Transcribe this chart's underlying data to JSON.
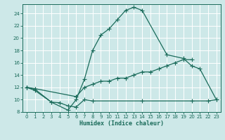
{
  "xlabel": "Humidex (Indice chaleur)",
  "bg_color": "#cde8e8",
  "grid_color": "#b0d4d4",
  "line_color": "#1a6b5a",
  "xlim": [
    -0.5,
    23.5
  ],
  "ylim": [
    8,
    25.5
  ],
  "xticks": [
    0,
    1,
    2,
    3,
    4,
    5,
    6,
    7,
    8,
    9,
    10,
    11,
    12,
    13,
    14,
    15,
    16,
    17,
    18,
    19,
    20,
    21,
    22,
    23
  ],
  "yticks": [
    8,
    10,
    12,
    14,
    16,
    18,
    20,
    22,
    24
  ],
  "line1": [
    [
      0,
      12.0
    ],
    [
      1,
      11.7
    ],
    [
      3,
      9.6
    ],
    [
      5,
      8.3
    ],
    [
      6,
      10.0
    ],
    [
      7,
      13.3
    ],
    [
      8,
      18.0
    ],
    [
      9,
      20.5
    ],
    [
      10,
      21.5
    ],
    [
      11,
      23.0
    ],
    [
      12,
      24.5
    ],
    [
      13,
      25.0
    ],
    [
      14,
      24.5
    ],
    [
      17,
      17.3
    ],
    [
      19,
      16.7
    ],
    [
      20,
      15.5
    ],
    [
      21,
      15.0
    ],
    [
      23,
      10.0
    ]
  ],
  "line2": [
    [
      0,
      12.0
    ],
    [
      1,
      11.8
    ],
    [
      6,
      10.5
    ],
    [
      7,
      12.0
    ],
    [
      8,
      12.5
    ],
    [
      9,
      13.0
    ],
    [
      10,
      13.0
    ],
    [
      11,
      13.5
    ],
    [
      12,
      13.5
    ],
    [
      13,
      14.0
    ],
    [
      14,
      14.5
    ],
    [
      15,
      14.5
    ],
    [
      16,
      15.0
    ],
    [
      17,
      15.5
    ],
    [
      18,
      16.0
    ],
    [
      19,
      16.5
    ],
    [
      20,
      16.5
    ]
  ],
  "line3": [
    [
      0,
      12.0
    ],
    [
      1,
      11.5
    ],
    [
      3,
      9.6
    ],
    [
      4,
      9.5
    ],
    [
      5,
      9.0
    ],
    [
      6,
      8.8
    ],
    [
      7,
      10.0
    ],
    [
      8,
      9.8
    ],
    [
      14,
      9.8
    ],
    [
      20,
      9.8
    ],
    [
      22,
      9.8
    ],
    [
      23,
      10.0
    ]
  ]
}
